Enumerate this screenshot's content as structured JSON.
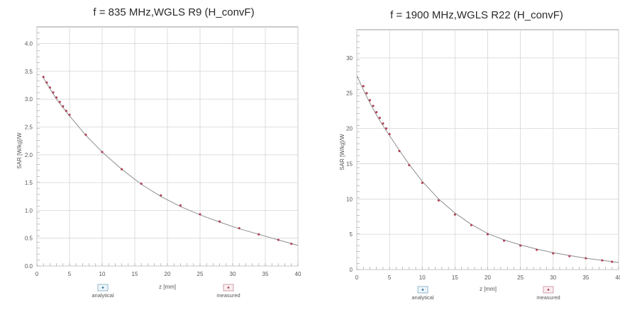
{
  "chart_data": [
    {
      "type": "line",
      "title": "f = 835 MHz,WGLS R9 (H_convF)",
      "xlabel": "z [mm]",
      "ylabel": "SAR [W/kg]/W",
      "xlim": [
        0,
        40
      ],
      "ylim": [
        0,
        4.3
      ],
      "xticks": [
        "0",
        "5",
        "10",
        "15",
        "20",
        "25",
        "30",
        "35",
        "40"
      ],
      "yticks": [
        "0.0",
        "0.5",
        "1.0",
        "1.5",
        "2.0",
        "2.5",
        "3.0",
        "3.5",
        "4.0"
      ],
      "grid": true,
      "legend": [
        "analytical",
        "measured"
      ],
      "series": [
        {
          "name": "analytical",
          "style": "line",
          "x": [
            1,
            3,
            5,
            7.5,
            10,
            13,
            16,
            19,
            22,
            25,
            28,
            31,
            34,
            37,
            40
          ],
          "values": [
            3.38,
            3.0,
            2.7,
            2.35,
            2.05,
            1.74,
            1.47,
            1.25,
            1.07,
            0.92,
            0.79,
            0.67,
            0.57,
            0.47,
            0.37
          ]
        },
        {
          "name": "measured",
          "style": "points",
          "x": [
            1,
            1.5,
            2,
            2.5,
            3,
            3.5,
            4,
            4.5,
            5,
            7.5,
            10,
            13,
            16,
            19,
            22,
            25,
            28,
            31,
            34,
            37,
            39
          ],
          "values": [
            3.4,
            3.3,
            3.21,
            3.12,
            3.03,
            2.95,
            2.87,
            2.79,
            2.72,
            2.36,
            2.05,
            1.74,
            1.48,
            1.27,
            1.09,
            0.93,
            0.8,
            0.68,
            0.57,
            0.47,
            0.4
          ]
        }
      ]
    },
    {
      "type": "line",
      "title": "f = 1900 MHz,WGLS R22 (H_convF)",
      "xlabel": "z [mm]",
      "ylabel": "SAR [W/kg]/W",
      "xlim": [
        0,
        40
      ],
      "ylim": [
        0,
        34
      ],
      "xticks": [
        "0",
        "5",
        "10",
        "15",
        "20",
        "25",
        "30",
        "35",
        "40"
      ],
      "yticks": [
        "0",
        "5",
        "10",
        "15",
        "20",
        "25",
        "30"
      ],
      "grid": true,
      "legend": [
        "analytical",
        "measured"
      ],
      "series": [
        {
          "name": "analytical",
          "style": "line",
          "x": [
            0,
            1,
            2,
            3,
            4,
            5,
            6.5,
            8,
            10,
            12.5,
            15,
            17.5,
            20,
            22.5,
            25,
            27.5,
            30,
            32.5,
            35,
            37.5,
            40
          ],
          "values": [
            27.5,
            25.5,
            23.6,
            21.9,
            20.4,
            19.0,
            16.9,
            14.9,
            12.5,
            10.0,
            8.0,
            6.4,
            5.1,
            4.2,
            3.5,
            2.9,
            2.4,
            2.0,
            1.6,
            1.3,
            1.0
          ]
        },
        {
          "name": "measured",
          "style": "points",
          "x": [
            1,
            1.5,
            2,
            2.5,
            3,
            3.5,
            4,
            4.5,
            5,
            6.5,
            8,
            10,
            12.5,
            15,
            17.5,
            20,
            22.5,
            25,
            27.5,
            30,
            32.5,
            35,
            37.5,
            39
          ],
          "values": [
            26.0,
            25.0,
            24.0,
            23.2,
            22.3,
            21.5,
            20.7,
            20.0,
            19.2,
            16.8,
            14.8,
            12.3,
            9.8,
            7.8,
            6.3,
            5.0,
            4.1,
            3.4,
            2.8,
            2.3,
            1.9,
            1.6,
            1.3,
            1.1
          ]
        }
      ]
    }
  ]
}
